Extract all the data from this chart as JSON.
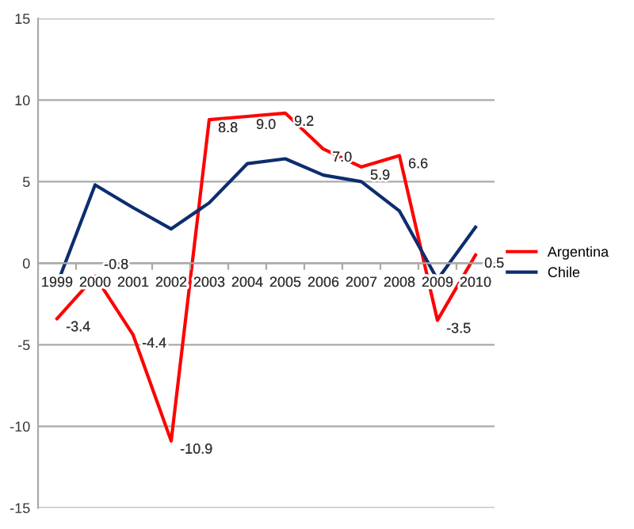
{
  "chart_data": {
    "type": "line",
    "categories": [
      "1999",
      "2000",
      "2001",
      "2002",
      "2003",
      "2004",
      "2005",
      "2006",
      "2007",
      "2008",
      "2009",
      "2010"
    ],
    "series": [
      {
        "name": "Argentina",
        "color": "#ff0000",
        "values": [
          -3.4,
          -0.8,
          -4.4,
          -10.9,
          8.8,
          9.0,
          9.2,
          7.0,
          5.9,
          6.6,
          -3.5,
          0.5
        ],
        "value_labels": [
          "-3.4",
          "-0.8",
          "-4.4",
          "-10.9",
          "8.8",
          "9.0",
          "9.2",
          "7.0",
          "5.9",
          "6.6",
          "-3.5",
          "0.5"
        ]
      },
      {
        "name": "Chile",
        "color": "#0d2d6e",
        "values": [
          -1.3,
          4.8,
          3.4,
          2.1,
          3.7,
          6.1,
          6.4,
          5.4,
          5.0,
          3.2,
          -1.0,
          2.2
        ]
      }
    ],
    "ylim": [
      -15,
      15
    ],
    "yticks": [
      -15,
      -10,
      -5,
      0,
      5,
      10,
      15
    ],
    "grid": "y",
    "legend": "right",
    "marker": "none",
    "line_style": "solid"
  }
}
